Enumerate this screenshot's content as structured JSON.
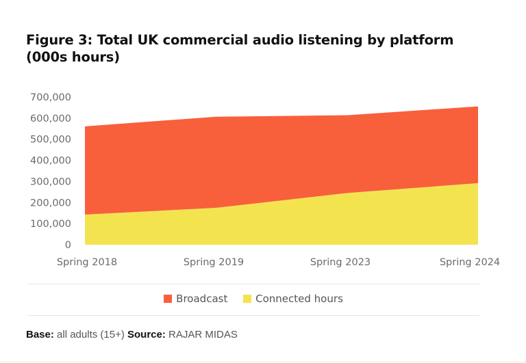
{
  "chart_data": {
    "type": "area",
    "stacked": true,
    "title": "Figure 3: Total UK commercial audio listening by platform (000s hours)",
    "xlabel": "",
    "ylabel": "",
    "categories": [
      "Spring 2018",
      "Spring 2019",
      "Spring 2023",
      "Spring 2024"
    ],
    "series": [
      {
        "name": "Connected hours",
        "color": "#f3e44f",
        "values": [
          143000,
          175000,
          245000,
          292000
        ]
      },
      {
        "name": "Broadcast",
        "color": "#f8603c",
        "values": [
          418000,
          432000,
          369000,
          364000
        ]
      }
    ],
    "ylim": [
      0,
      700000
    ],
    "yticks": [
      0,
      100000,
      200000,
      300000,
      400000,
      500000,
      600000,
      700000
    ],
    "ytick_labels": [
      "0",
      "100,000",
      "200,000",
      "300,000",
      "400,000",
      "500,000",
      "600,000",
      "700,000"
    ],
    "grid": false,
    "legend": {
      "position": "bottom-center",
      "entries": [
        {
          "label": "Broadcast",
          "color": "#f8603c"
        },
        {
          "label": "Connected hours",
          "color": "#f3e44f"
        }
      ]
    }
  },
  "title_line1": "Figure 3: Total UK commercial audio listening by platform",
  "title_line2": "(000s hours)",
  "footer": {
    "base_label": "Base:",
    "base_value": "all adults (15+)",
    "source_label": "Source:",
    "source_value": "RAJAR MIDAS"
  }
}
